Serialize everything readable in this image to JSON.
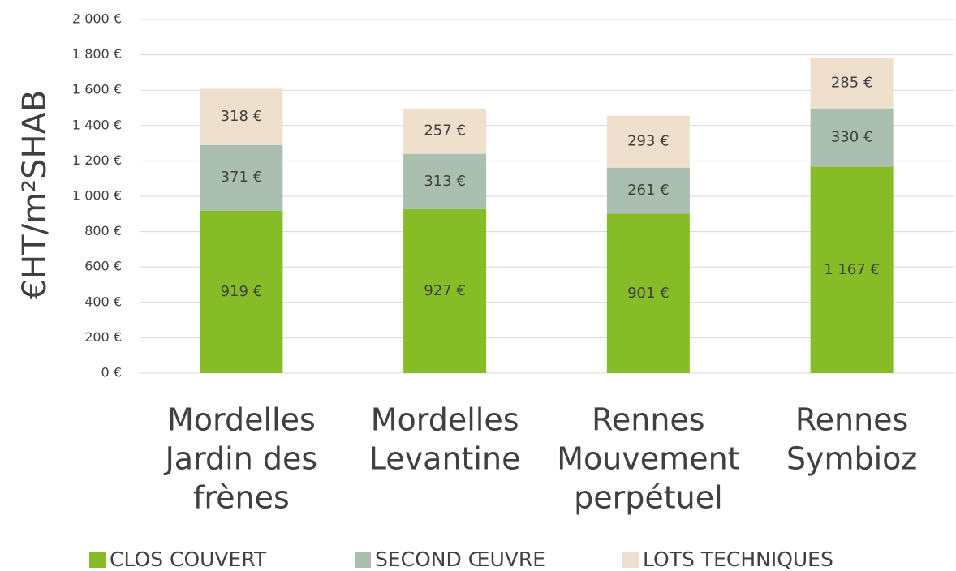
{
  "chart_data": {
    "type": "stacked_bar",
    "ylabel": "€HT/m²SHAB",
    "categories": [
      [
        "Mordelles",
        "Jardin des",
        "frènes"
      ],
      [
        "Mordelles",
        "Levantine"
      ],
      [
        "Rennes",
        "Mouvement",
        "perpétuel"
      ],
      [
        "Rennes",
        "Symbioz"
      ]
    ],
    "series": [
      {
        "name": "CLOS COUVERT",
        "color": "#86bc25",
        "values": [
          919,
          927,
          901,
          1167
        ],
        "value_labels": [
          "919 €",
          "927 €",
          "901 €",
          "1 167 €"
        ]
      },
      {
        "name": "SECOND ŒUVRE",
        "color": "#aabfb0",
        "values": [
          371,
          313,
          261,
          330
        ],
        "value_labels": [
          "371 €",
          "313 €",
          "261 €",
          "330 €"
        ]
      },
      {
        "name": "LOTS TECHNIQUES",
        "color": "#efe0cd",
        "values": [
          318,
          257,
          293,
          285
        ],
        "value_labels": [
          "318 €",
          "257 €",
          "293 €",
          "285 €"
        ]
      }
    ],
    "ylim": [
      0,
      2000
    ],
    "yticks": [
      {
        "value": 0,
        "label": "0 €"
      },
      {
        "value": 200,
        "label": "200 €"
      },
      {
        "value": 400,
        "label": "400 €"
      },
      {
        "value": 600,
        "label": "600 €"
      },
      {
        "value": 800,
        "label": "800 €"
      },
      {
        "value": 1000,
        "label": "1 000 €"
      },
      {
        "value": 1200,
        "label": "1 200 €"
      },
      {
        "value": 1400,
        "label": "1 400 €"
      },
      {
        "value": 1600,
        "label": "1 600 €"
      },
      {
        "value": 1800,
        "label": "1 800 €"
      },
      {
        "value": 2000,
        "label": "2 000 €"
      }
    ],
    "grid": true,
    "legend": "bottom"
  }
}
